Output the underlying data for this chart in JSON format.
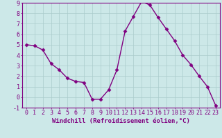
{
  "x": [
    0,
    1,
    2,
    3,
    4,
    5,
    6,
    7,
    8,
    9,
    10,
    11,
    12,
    13,
    14,
    15,
    16,
    17,
    18,
    19,
    20,
    21,
    22,
    23
  ],
  "y": [
    5.0,
    4.9,
    4.5,
    3.2,
    2.6,
    1.8,
    1.5,
    1.4,
    -0.2,
    -0.2,
    0.7,
    2.6,
    6.3,
    7.7,
    9.1,
    8.8,
    7.6,
    6.5,
    5.4,
    4.0,
    3.1,
    2.0,
    1.0,
    -0.8
  ],
  "line_color": "#800080",
  "marker_color": "#800080",
  "bg_color": "#cce8e8",
  "grid_color": "#aacccc",
  "xlabel": "Windchill (Refroidissement éolien,°C)",
  "ylim": [
    -1,
    9
  ],
  "xlim": [
    -0.5,
    23.5
  ],
  "yticks": [
    -1,
    0,
    1,
    2,
    3,
    4,
    5,
    6,
    7,
    8,
    9
  ],
  "xticks": [
    0,
    1,
    2,
    3,
    4,
    5,
    6,
    7,
    8,
    9,
    10,
    11,
    12,
    13,
    14,
    15,
    16,
    17,
    18,
    19,
    20,
    21,
    22,
    23
  ],
  "tick_label_color": "#800080",
  "axis_color": "#800080",
  "xlabel_fontsize": 6.5,
  "tick_fontsize": 6.0,
  "linewidth": 1.0,
  "markersize": 2.5
}
